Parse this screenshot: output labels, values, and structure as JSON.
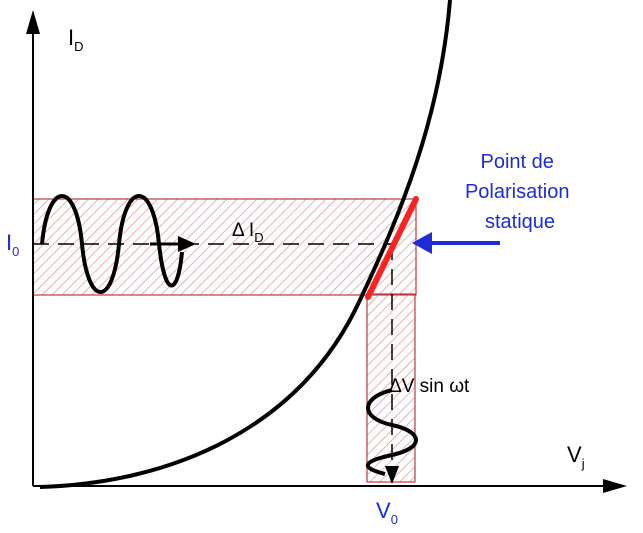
{
  "axes": {
    "y_label": "I",
    "y_label_sub": "D",
    "x_label": "V",
    "x_label_sub": "j"
  },
  "operating_point": {
    "current_label": "I",
    "current_label_sub": "0",
    "voltage_label": "V",
    "voltage_label_sub": "0"
  },
  "annotations": {
    "delta_current": "Δ I",
    "delta_current_sub": "D",
    "delta_voltage": "ΔV sin ωt",
    "callout_line1": "Point de",
    "callout_line2": "Polarisation",
    "callout_line3": "statique"
  },
  "colors": {
    "axis": "#000000",
    "curve": "#000000",
    "band_stroke": "#c0393b",
    "band_hatch": "#e08a8c",
    "tangent": "#ff2222",
    "callout": "#1f2bd6"
  }
}
